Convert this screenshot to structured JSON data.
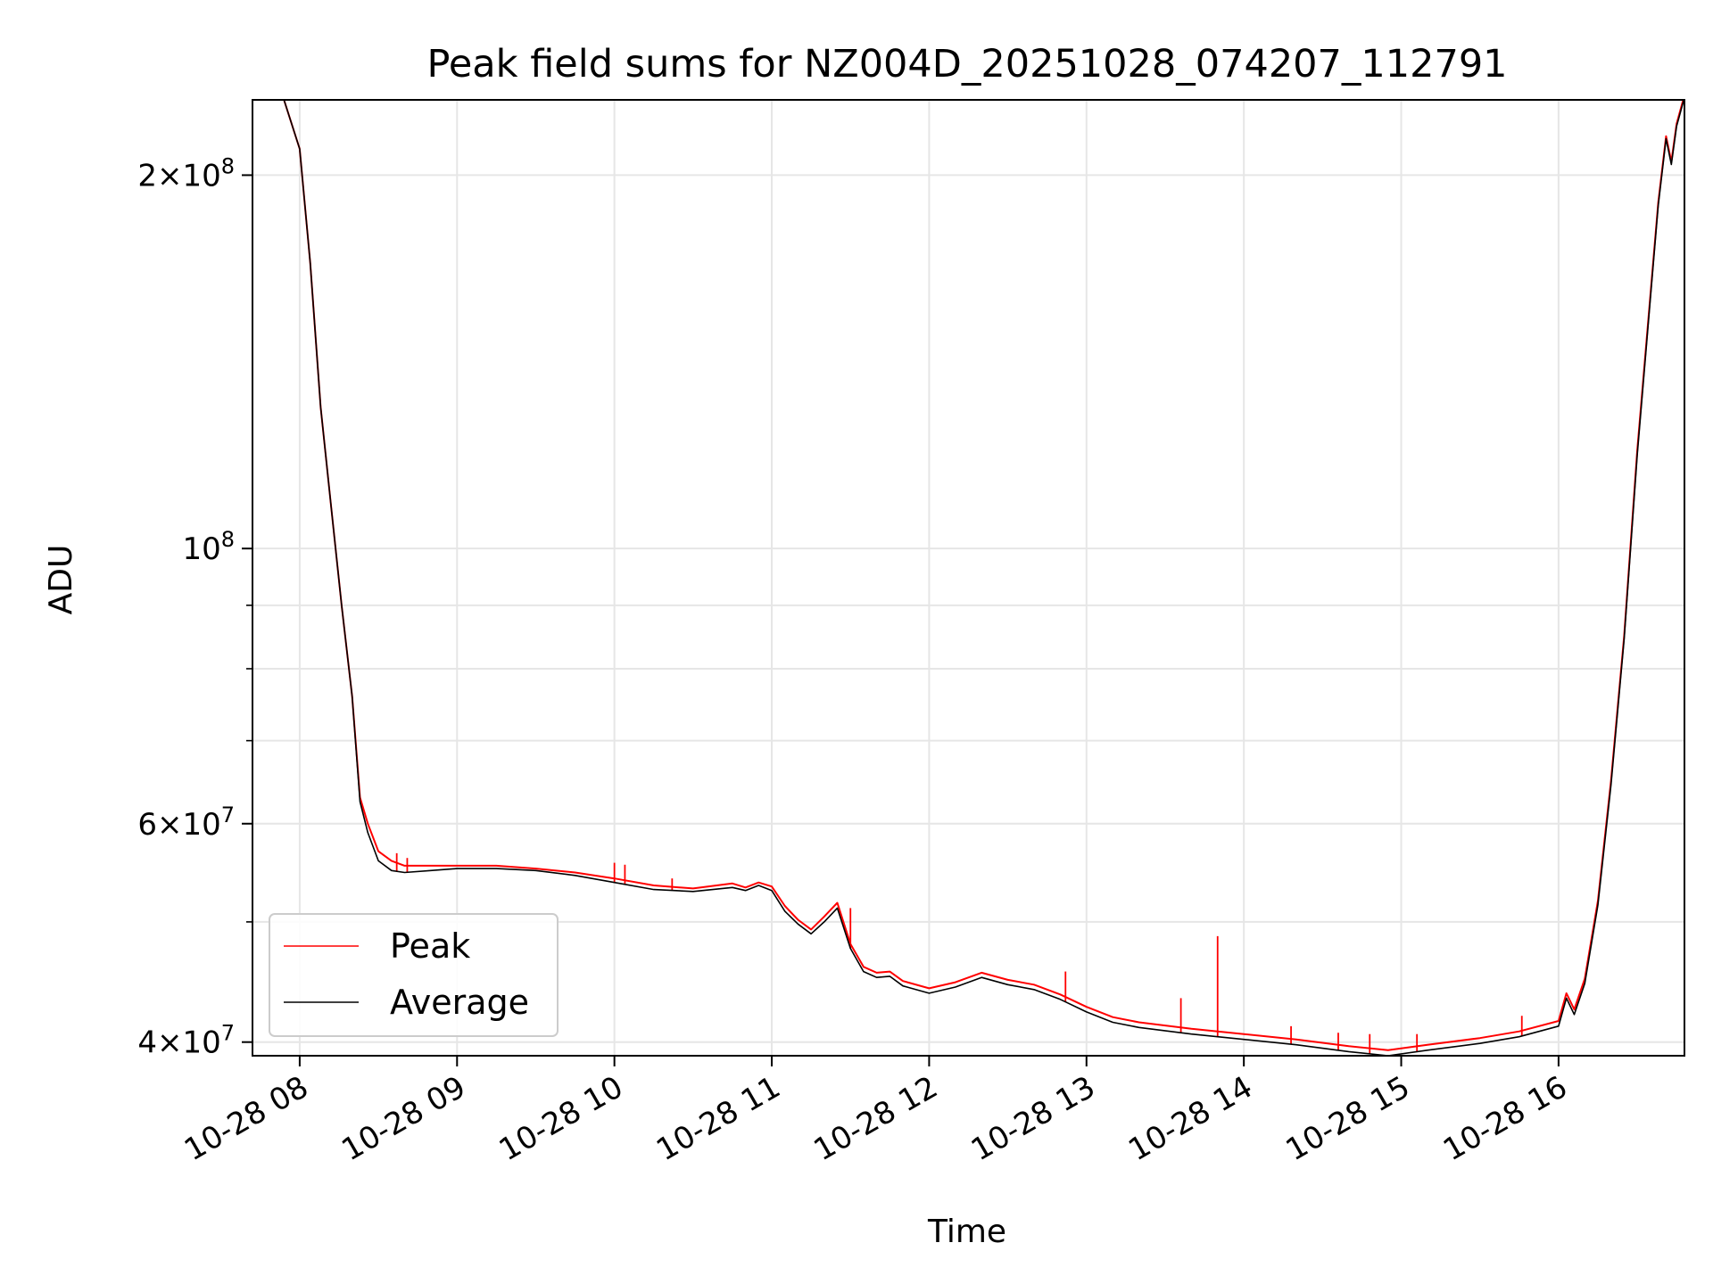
{
  "chart_data": {
    "type": "line",
    "title": "Peak field sums for NZ004D_20251028_074207_112791",
    "xlabel": "Time",
    "ylabel": "ADU",
    "y_scale": "log",
    "grid": true,
    "legend_position": "lower-left",
    "xlim": [
      "2025-10-28 07:42",
      "2025-10-28 16:48"
    ],
    "ylim": [
      39000000,
      230000000
    ],
    "x_ticks": [
      {
        "value": "2025-10-28 08:00",
        "label": "10-28 08"
      },
      {
        "value": "2025-10-28 09:00",
        "label": "10-28 09"
      },
      {
        "value": "2025-10-28 10:00",
        "label": "10-28 10"
      },
      {
        "value": "2025-10-28 11:00",
        "label": "10-28 11"
      },
      {
        "value": "2025-10-28 12:00",
        "label": "10-28 12"
      },
      {
        "value": "2025-10-28 13:00",
        "label": "10-28 13"
      },
      {
        "value": "2025-10-28 14:00",
        "label": "10-28 14"
      },
      {
        "value": "2025-10-28 15:00",
        "label": "10-28 15"
      },
      {
        "value": "2025-10-28 16:00",
        "label": "10-28 16"
      }
    ],
    "y_ticks": [
      {
        "value": 40000000,
        "mantissa": "4",
        "exponent": "7"
      },
      {
        "value": 60000000,
        "mantissa": "6",
        "exponent": "7"
      },
      {
        "value": 100000000,
        "mantissa": "",
        "exponent": "8"
      },
      {
        "value": 200000000,
        "mantissa": "2",
        "exponent": "8"
      }
    ],
    "y_minor_ticks": [
      50000000,
      70000000,
      80000000,
      90000000
    ],
    "series": [
      {
        "name": "Peak",
        "color": "#ff0000",
        "x": [
          "2025-10-28 07:54",
          "2025-10-28 08:00",
          "2025-10-28 08:04",
          "2025-10-28 08:08",
          "2025-10-28 08:12",
          "2025-10-28 08:16",
          "2025-10-28 08:20",
          "2025-10-28 08:23",
          "2025-10-28 08:26",
          "2025-10-28 08:30",
          "2025-10-28 08:35",
          "2025-10-28 08:40",
          "2025-10-28 08:50",
          "2025-10-28 09:00",
          "2025-10-28 09:15",
          "2025-10-28 09:30",
          "2025-10-28 09:45",
          "2025-10-28 10:00",
          "2025-10-28 10:15",
          "2025-10-28 10:30",
          "2025-10-28 10:45",
          "2025-10-28 10:50",
          "2025-10-28 10:55",
          "2025-10-28 11:00",
          "2025-10-28 11:05",
          "2025-10-28 11:10",
          "2025-10-28 11:15",
          "2025-10-28 11:20",
          "2025-10-28 11:25",
          "2025-10-28 11:30",
          "2025-10-28 11:35",
          "2025-10-28 11:40",
          "2025-10-28 11:45",
          "2025-10-28 11:50",
          "2025-10-28 12:00",
          "2025-10-28 12:10",
          "2025-10-28 12:20",
          "2025-10-28 12:30",
          "2025-10-28 12:40",
          "2025-10-28 12:50",
          "2025-10-28 13:00",
          "2025-10-28 13:10",
          "2025-10-28 13:20",
          "2025-10-28 13:40",
          "2025-10-28 14:00",
          "2025-10-28 14:20",
          "2025-10-28 14:40",
          "2025-10-28 14:55",
          "2025-10-28 15:10",
          "2025-10-28 15:30",
          "2025-10-28 15:45",
          "2025-10-28 16:00",
          "2025-10-28 16:03",
          "2025-10-28 16:06",
          "2025-10-28 16:10",
          "2025-10-28 16:15",
          "2025-10-28 16:20",
          "2025-10-28 16:25",
          "2025-10-28 16:30",
          "2025-10-28 16:35",
          "2025-10-28 16:38",
          "2025-10-28 16:41",
          "2025-10-28 16:43",
          "2025-10-28 16:45",
          "2025-10-28 16:48"
        ],
        "y": [
          230000000,
          210000000,
          170000000,
          130000000,
          108000000,
          90000000,
          76000000,
          63000000,
          60000000,
          57000000,
          56000000,
          55500000,
          55500000,
          55500000,
          55500000,
          55200000,
          54800000,
          54200000,
          53500000,
          53200000,
          53700000,
          53300000,
          53800000,
          53400000,
          51500000,
          50200000,
          49300000,
          50500000,
          51800000,
          48000000,
          46000000,
          45500000,
          45600000,
          44800000,
          44200000,
          44700000,
          45500000,
          44900000,
          44500000,
          43700000,
          42700000,
          41900000,
          41500000,
          41000000,
          40600000,
          40200000,
          39700000,
          39400000,
          39800000,
          40300000,
          40800000,
          41600000,
          43800000,
          42500000,
          45000000,
          52000000,
          65000000,
          85000000,
          120000000,
          160000000,
          190000000,
          215000000,
          205000000,
          220000000,
          232000000
        ]
      },
      {
        "name": "Average",
        "color": "#000000",
        "x": [
          "2025-10-28 07:54",
          "2025-10-28 08:00",
          "2025-10-28 08:04",
          "2025-10-28 08:08",
          "2025-10-28 08:12",
          "2025-10-28 08:16",
          "2025-10-28 08:20",
          "2025-10-28 08:23",
          "2025-10-28 08:26",
          "2025-10-28 08:30",
          "2025-10-28 08:35",
          "2025-10-28 08:40",
          "2025-10-28 08:50",
          "2025-10-28 09:00",
          "2025-10-28 09:15",
          "2025-10-28 09:30",
          "2025-10-28 09:45",
          "2025-10-28 10:00",
          "2025-10-28 10:15",
          "2025-10-28 10:30",
          "2025-10-28 10:45",
          "2025-10-28 10:50",
          "2025-10-28 10:55",
          "2025-10-28 11:00",
          "2025-10-28 11:05",
          "2025-10-28 11:10",
          "2025-10-28 11:15",
          "2025-10-28 11:20",
          "2025-10-28 11:25",
          "2025-10-28 11:30",
          "2025-10-28 11:35",
          "2025-10-28 11:40",
          "2025-10-28 11:45",
          "2025-10-28 11:50",
          "2025-10-28 12:00",
          "2025-10-28 12:10",
          "2025-10-28 12:20",
          "2025-10-28 12:30",
          "2025-10-28 12:40",
          "2025-10-28 12:50",
          "2025-10-28 13:00",
          "2025-10-28 13:10",
          "2025-10-28 13:20",
          "2025-10-28 13:40",
          "2025-10-28 14:00",
          "2025-10-28 14:20",
          "2025-10-28 14:40",
          "2025-10-28 14:55",
          "2025-10-28 15:10",
          "2025-10-28 15:30",
          "2025-10-28 15:45",
          "2025-10-28 16:00",
          "2025-10-28 16:03",
          "2025-10-28 16:06",
          "2025-10-28 16:10",
          "2025-10-28 16:15",
          "2025-10-28 16:20",
          "2025-10-28 16:25",
          "2025-10-28 16:30",
          "2025-10-28 16:35",
          "2025-10-28 16:38",
          "2025-10-28 16:41",
          "2025-10-28 16:43",
          "2025-10-28 16:45",
          "2025-10-28 16:48"
        ],
        "y": [
          230000000,
          210000000,
          170000000,
          130000000,
          108000000,
          90000000,
          76000000,
          62500000,
          59000000,
          56000000,
          55000000,
          54800000,
          55000000,
          55200000,
          55200000,
          55000000,
          54500000,
          53800000,
          53100000,
          52900000,
          53300000,
          53000000,
          53500000,
          53000000,
          51000000,
          49800000,
          48900000,
          50000000,
          51300000,
          47600000,
          45600000,
          45100000,
          45200000,
          44400000,
          43800000,
          44300000,
          45100000,
          44500000,
          44100000,
          43300000,
          42300000,
          41500000,
          41100000,
          40600000,
          40200000,
          39800000,
          39300000,
          39000000,
          39400000,
          39900000,
          40400000,
          41200000,
          43400000,
          42100000,
          44600000,
          51600000,
          64500000,
          84500000,
          119000000,
          159000000,
          189000000,
          214000000,
          204000000,
          219000000,
          231000000
        ]
      }
    ],
    "spikes": [
      {
        "series": "Peak",
        "x": "2025-10-28 08:37",
        "y": 56800000
      },
      {
        "series": "Peak",
        "x": "2025-10-28 08:41",
        "y": 56300000
      },
      {
        "series": "Peak",
        "x": "2025-10-28 10:00",
        "y": 55800000
      },
      {
        "series": "Peak",
        "x": "2025-10-28 10:04",
        "y": 55600000
      },
      {
        "series": "Peak",
        "x": "2025-10-28 10:22",
        "y": 54200000
      },
      {
        "series": "Peak",
        "x": "2025-10-28 11:30",
        "y": 51300000
      },
      {
        "series": "Peak",
        "x": "2025-10-28 12:52",
        "y": 45600000
      },
      {
        "series": "Peak",
        "x": "2025-10-28 13:36",
        "y": 43400000
      },
      {
        "series": "Peak",
        "x": "2025-10-28 13:50",
        "y": 48700000
      },
      {
        "series": "Peak",
        "x": "2025-10-28 14:18",
        "y": 41200000
      },
      {
        "series": "Peak",
        "x": "2025-10-28 14:36",
        "y": 40700000
      },
      {
        "series": "Peak",
        "x": "2025-10-28 14:48",
        "y": 40600000
      },
      {
        "series": "Peak",
        "x": "2025-10-28 15:06",
        "y": 40600000
      },
      {
        "series": "Peak",
        "x": "2025-10-28 15:46",
        "y": 42000000
      }
    ]
  }
}
